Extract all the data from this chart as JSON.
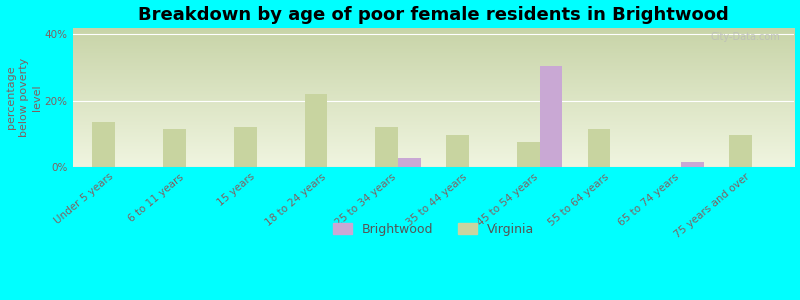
{
  "title": "Breakdown by age of poor female residents in Brightwood",
  "ylabel": "percentage\nbelow poverty\nlevel",
  "categories": [
    "Under 5 years",
    "6 to 11 years",
    "15 years",
    "18 to 24 years",
    "25 to 34 years",
    "35 to 44 years",
    "45 to 54 years",
    "55 to 64 years",
    "65 to 74 years",
    "75 years and over"
  ],
  "brightwood_values": [
    0,
    0,
    0,
    0,
    2.5,
    0,
    30.5,
    0,
    1.5,
    0
  ],
  "virginia_values": [
    13.5,
    11.5,
    12.0,
    22.0,
    12.0,
    9.5,
    7.5,
    11.5,
    0,
    9.5
  ],
  "brightwood_color": "#c9a8d4",
  "virginia_color": "#c8d4a0",
  "background_color": "#00ffff",
  "grad_top_color": "#c8d4a8",
  "grad_bottom_color": "#f0f5e0",
  "ylim": [
    0,
    42
  ],
  "yticks": [
    0,
    20,
    40
  ],
  "ytick_labels": [
    "0%",
    "20%",
    "40%"
  ],
  "bar_width": 0.32,
  "title_fontsize": 13,
  "axis_label_fontsize": 8,
  "tick_fontsize": 7.5,
  "legend_fontsize": 9,
  "tick_color": "#806060",
  "label_color": "#806060"
}
